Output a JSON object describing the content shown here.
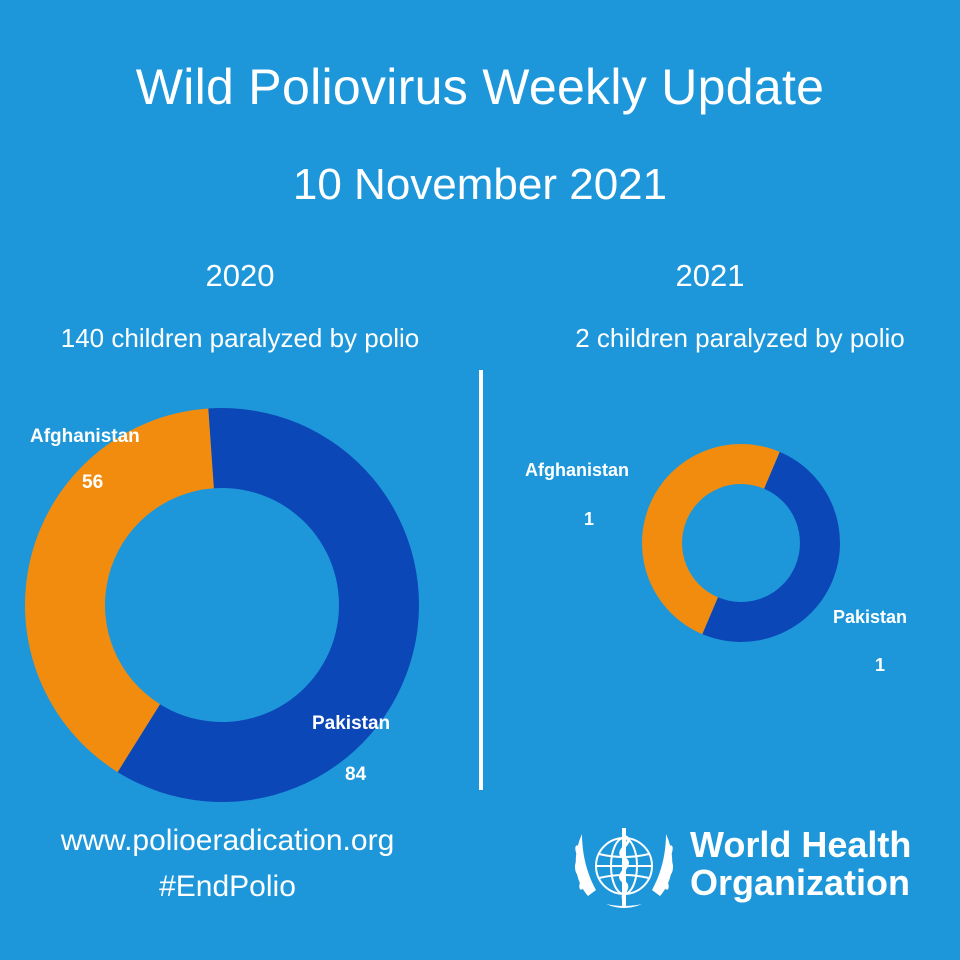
{
  "header": {
    "title": "Wild Poliovirus Weekly Update",
    "date": "10 November 2021"
  },
  "chart_data": [
    {
      "type": "pie",
      "title": "2020",
      "subtitle": "140 children paralyzed by polio",
      "series": [
        {
          "name": "Afghanistan",
          "value": 56,
          "color": "#F28C0F"
        },
        {
          "name": "Pakistan",
          "value": 84,
          "color": "#0C47B7"
        }
      ]
    },
    {
      "type": "pie",
      "title": "2021",
      "subtitle": "2 children paralyzed by polio",
      "series": [
        {
          "name": "Afghanistan",
          "value": 1,
          "color": "#F28C0F"
        },
        {
          "name": "Pakistan",
          "value": 1,
          "color": "#0C47B7"
        }
      ]
    }
  ],
  "footer": {
    "url": "www.polioeradication.org",
    "hashtag": "#EndPolio",
    "org_line1": "World Health",
    "org_line2": "Organization",
    "logo_icon": "who-emblem-icon"
  },
  "colors": {
    "background": "#1D97DA",
    "afghanistan": "#F28C0F",
    "pakistan": "#0C47B7",
    "text": "#FFFFFF"
  }
}
